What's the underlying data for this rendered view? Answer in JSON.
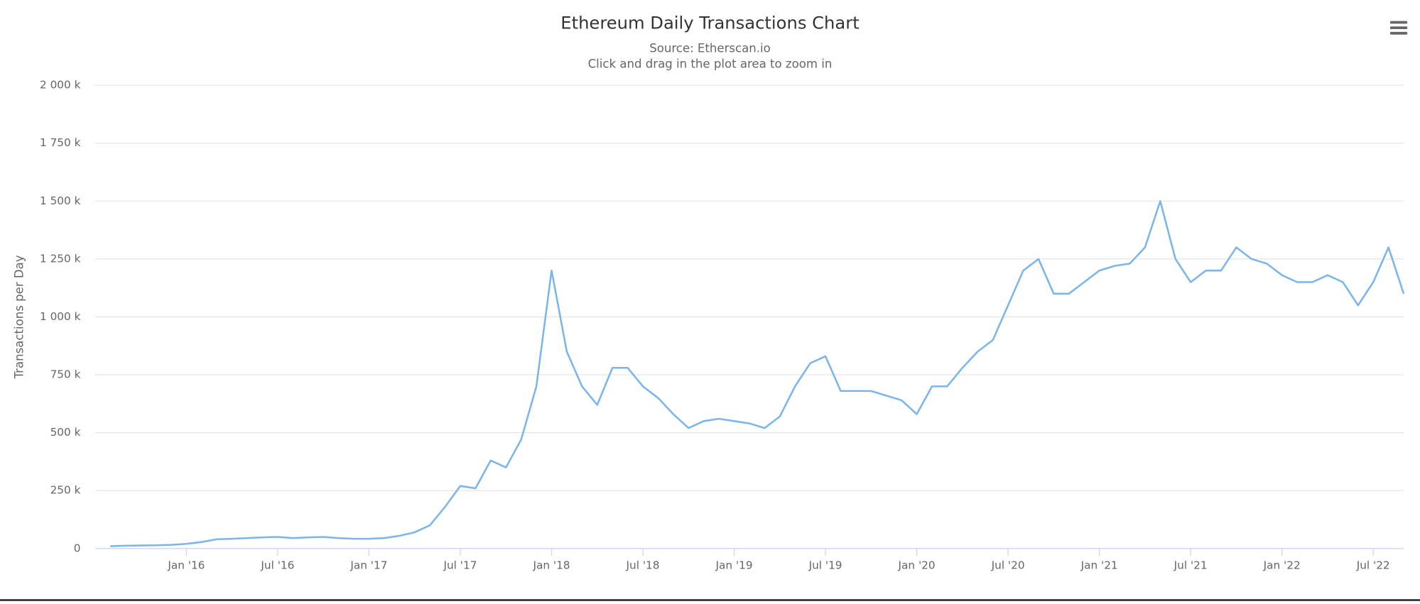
{
  "chart_data": {
    "type": "line",
    "title": "Ethereum Daily Transactions Chart",
    "subtitle": [
      "Source: Etherscan.io",
      "Click and drag in the plot area to zoom in"
    ],
    "y_label": "Transactions per Day",
    "x": [
      "2015-08",
      "2015-09",
      "2015-10",
      "2015-11",
      "2015-12",
      "2016-01",
      "2016-02",
      "2016-03",
      "2016-04",
      "2016-05",
      "2016-06",
      "2016-07",
      "2016-08",
      "2016-09",
      "2016-10",
      "2016-11",
      "2016-12",
      "2017-01",
      "2017-02",
      "2017-03",
      "2017-04",
      "2017-05",
      "2017-06",
      "2017-07",
      "2017-08",
      "2017-09",
      "2017-10",
      "2017-11",
      "2017-12",
      "2018-01",
      "2018-02",
      "2018-03",
      "2018-04",
      "2018-05",
      "2018-06",
      "2018-07",
      "2018-08",
      "2018-09",
      "2018-10",
      "2018-11",
      "2018-12",
      "2019-01",
      "2019-02",
      "2019-03",
      "2019-04",
      "2019-05",
      "2019-06",
      "2019-07",
      "2019-08",
      "2019-09",
      "2019-10",
      "2019-11",
      "2019-12",
      "2020-01",
      "2020-02",
      "2020-03",
      "2020-04",
      "2020-05",
      "2020-06",
      "2020-07",
      "2020-08",
      "2020-09",
      "2020-10",
      "2020-11",
      "2020-12",
      "2021-01",
      "2021-02",
      "2021-03",
      "2021-04",
      "2021-05",
      "2021-06",
      "2021-07",
      "2021-08",
      "2021-09",
      "2021-10",
      "2021-11",
      "2021-12",
      "2022-01",
      "2022-02",
      "2022-03",
      "2022-04",
      "2022-05",
      "2022-06",
      "2022-07",
      "2022-08",
      "2022-09"
    ],
    "series": [
      {
        "name": "Transactions",
        "color": "#7cb5ec",
        "values": [
          10000,
          12000,
          13000,
          14000,
          16000,
          20000,
          28000,
          40000,
          42000,
          45000,
          48000,
          50000,
          45000,
          48000,
          50000,
          45000,
          42000,
          42000,
          45000,
          55000,
          70000,
          100000,
          180000,
          270000,
          260000,
          380000,
          350000,
          470000,
          700000,
          1200000,
          850000,
          700000,
          620000,
          780000,
          780000,
          700000,
          650000,
          580000,
          520000,
          550000,
          560000,
          550000,
          540000,
          520000,
          570000,
          700000,
          800000,
          830000,
          680000,
          680000,
          680000,
          660000,
          640000,
          580000,
          700000,
          700000,
          780000,
          850000,
          900000,
          1050000,
          1200000,
          1250000,
          1100000,
          1100000,
          1150000,
          1200000,
          1220000,
          1230000,
          1300000,
          1500000,
          1250000,
          1150000,
          1200000,
          1200000,
          1300000,
          1250000,
          1230000,
          1180000,
          1150000,
          1150000,
          1180000,
          1150000,
          1050000,
          1150000,
          1300000,
          1100000
        ]
      }
    ],
    "xlim": [
      "2015-07",
      "2022-09"
    ],
    "xticks": [
      {
        "value": "2016-01",
        "label": "Jan '16"
      },
      {
        "value": "2016-07",
        "label": "Jul '16"
      },
      {
        "value": "2017-01",
        "label": "Jan '17"
      },
      {
        "value": "2017-07",
        "label": "Jul '17"
      },
      {
        "value": "2018-01",
        "label": "Jan '18"
      },
      {
        "value": "2018-07",
        "label": "Jul '18"
      },
      {
        "value": "2019-01",
        "label": "Jan '19"
      },
      {
        "value": "2019-07",
        "label": "Jul '19"
      },
      {
        "value": "2020-01",
        "label": "Jan '20"
      },
      {
        "value": "2020-07",
        "label": "Jul '20"
      },
      {
        "value": "2021-01",
        "label": "Jan '21"
      },
      {
        "value": "2021-07",
        "label": "Jul '21"
      },
      {
        "value": "2022-01",
        "label": "Jan '22"
      },
      {
        "value": "2022-07",
        "label": "Jul '22"
      }
    ],
    "ylim": [
      0,
      2000000
    ],
    "yticks": [
      0,
      {
        "value": 250000,
        "label": "250 k"
      },
      {
        "value": 500000,
        "label": "500 k"
      },
      {
        "value": 750000,
        "label": "750 k"
      },
      {
        "value": 1000000,
        "label": "1 000 k"
      },
      {
        "value": 1250000,
        "label": "1 250 k"
      },
      {
        "value": 1500000,
        "label": "1 500 k"
      },
      {
        "value": 1750000,
        "label": "1 750 k"
      },
      {
        "value": 2000000,
        "label": "2 000 k"
      }
    ],
    "grid": true
  }
}
